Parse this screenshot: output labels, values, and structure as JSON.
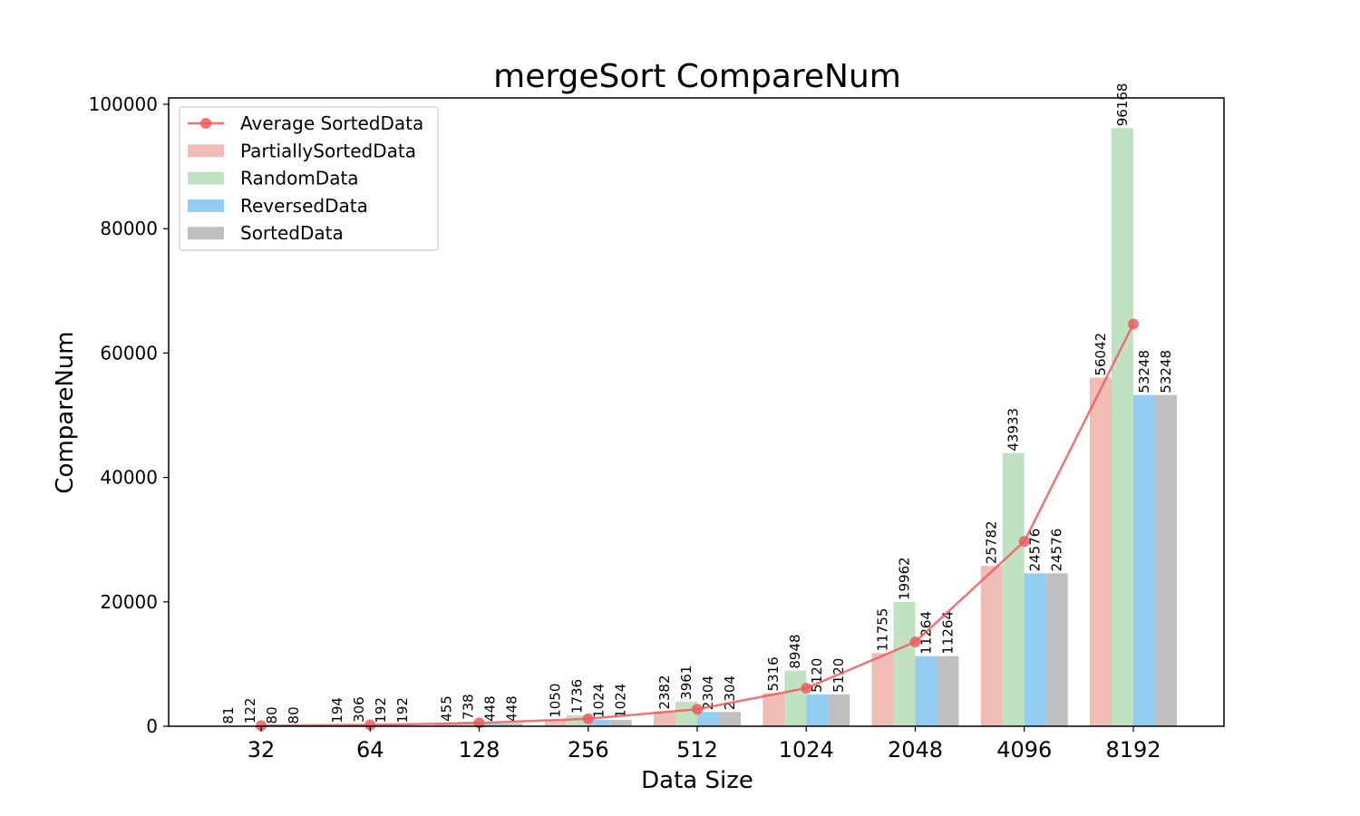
{
  "chart_data": {
    "type": "bar",
    "title": "mergeSort CompareNum",
    "xlabel": "Data Size",
    "ylabel": "CompareNum",
    "categories": [
      "32",
      "64",
      "128",
      "256",
      "512",
      "1024",
      "2048",
      "4096",
      "8192"
    ],
    "ylim": [
      0,
      100000
    ],
    "yticks": [
      0,
      20000,
      40000,
      60000,
      80000,
      100000
    ],
    "ytick_labels": [
      "0",
      "20000",
      "40000",
      "60000",
      "80000",
      "100000"
    ],
    "grid": false,
    "legend_position": "top-left",
    "series": [
      {
        "name": "PartiallySortedData",
        "color": "#f0bdb6",
        "values": [
          81,
          194,
          455,
          1050,
          2382,
          5316,
          11755,
          25782,
          56042
        ]
      },
      {
        "name": "RandomData",
        "color": "#c0e2c0",
        "values": [
          122,
          306,
          738,
          1736,
          3961,
          8948,
          19962,
          43933,
          96168
        ]
      },
      {
        "name": "ReversedData",
        "color": "#93cdf1",
        "values": [
          80,
          192,
          448,
          1024,
          2304,
          5120,
          11264,
          24576,
          53248
        ]
      },
      {
        "name": "SortedData",
        "color": "#c0c0c0",
        "values": [
          80,
          192,
          448,
          1024,
          2304,
          5120,
          11264,
          24576,
          53248
        ]
      }
    ],
    "line_series": {
      "name": "Average SortedData",
      "type": "line",
      "color": "#f05a5a",
      "values": [
        91,
        224,
        522,
        1209,
        2738,
        6126,
        13561,
        29717,
        64677
      ]
    }
  }
}
